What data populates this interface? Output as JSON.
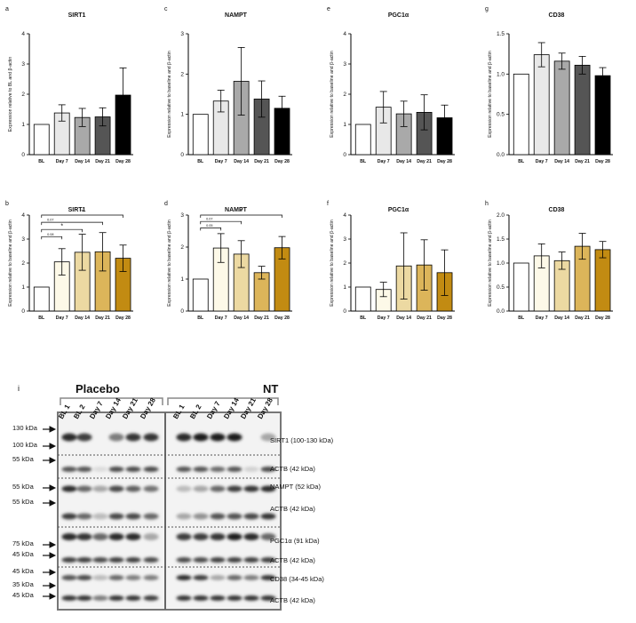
{
  "colors": {
    "greys": [
      "#ffffff",
      "#e8e8e8",
      "#a9a9a9",
      "#555555",
      "#000000"
    ],
    "golds": [
      "#ffffff",
      "#fdf9e8",
      "#ecd9a2",
      "#dcb55a",
      "#c28b12"
    ],
    "axis": "#000000"
  },
  "chart_data": [
    {
      "panel": "a",
      "type": "bar",
      "title": "SIRT1",
      "ylabel": "Expression relative to BL and β-actin",
      "categories": [
        "BL",
        "Day 7",
        "Day 14",
        "Day 21",
        "Day 28"
      ],
      "values": [
        1.0,
        1.38,
        1.23,
        1.25,
        1.97
      ],
      "errors": [
        0,
        0.27,
        0.3,
        0.3,
        0.9
      ],
      "ylim": [
        0,
        4
      ],
      "yticks": [
        "0",
        "1",
        "2",
        "3",
        "4"
      ],
      "palette": "greys",
      "sig": []
    },
    {
      "panel": "c",
      "type": "bar",
      "title": "NAMPT",
      "ylabel": "Expression relative to baseline and β-actin",
      "categories": [
        "BL",
        "Day 7",
        "Day 14",
        "Day 21",
        "Day 28"
      ],
      "values": [
        1.0,
        1.33,
        1.82,
        1.38,
        1.15
      ],
      "errors": [
        0,
        0.27,
        0.84,
        0.45,
        0.3
      ],
      "ylim": [
        0,
        3
      ],
      "yticks": [
        "0",
        "1",
        "2",
        "3"
      ],
      "palette": "greys",
      "sig": []
    },
    {
      "panel": "e",
      "type": "bar",
      "title": "PGC1α",
      "ylabel": "Expression relative to baseline and β-actin",
      "categories": [
        "BL",
        "Day 7",
        "Day 14",
        "Day 21",
        "Day 28"
      ],
      "values": [
        1.0,
        1.57,
        1.35,
        1.4,
        1.22
      ],
      "errors": [
        0,
        0.52,
        0.42,
        0.58,
        0.42
      ],
      "ylim": [
        0,
        4
      ],
      "yticks": [
        "0",
        "1",
        "2",
        "3",
        "4"
      ],
      "palette": "greys",
      "sig": []
    },
    {
      "panel": "g",
      "type": "bar",
      "title": "CD38",
      "ylabel": "Expression relative to baseline and β-actin",
      "categories": [
        "BL",
        "Day 7",
        "Day 14",
        "Day 21",
        "Day 28"
      ],
      "values": [
        1.0,
        1.24,
        1.16,
        1.11,
        0.98
      ],
      "errors": [
        0,
        0.15,
        0.1,
        0.11,
        0.1
      ],
      "ylim": [
        0,
        1.5
      ],
      "yticks": [
        "0.0",
        "0.5",
        "1.0",
        "1.5"
      ],
      "palette": "greys",
      "sig": []
    },
    {
      "panel": "b",
      "type": "bar",
      "title": "SIRT1",
      "ylabel": "Expression relative to baseline and β-actin",
      "categories": [
        "BL",
        "Day 7",
        "Day 14",
        "Day 21",
        "Day 28"
      ],
      "values": [
        1.0,
        2.05,
        2.45,
        2.47,
        2.2
      ],
      "errors": [
        0,
        0.55,
        0.75,
        0.8,
        0.55
      ],
      "ylim": [
        0,
        4
      ],
      "yticks": [
        "0",
        "1",
        "2",
        "3",
        "4"
      ],
      "palette": "golds",
      "sig": [
        {
          "from": 0,
          "to": 1,
          "y": 3.1,
          "label": "0.08"
        },
        {
          "from": 0,
          "to": 2,
          "y": 3.4,
          "label": "*"
        },
        {
          "from": 0,
          "to": 3,
          "y": 3.7,
          "label": "0.07"
        },
        {
          "from": 0,
          "to": 4,
          "y": 4.0,
          "label": "*"
        }
      ]
    },
    {
      "panel": "d",
      "type": "bar",
      "title": "NAMPT",
      "ylabel": "Expression relative to baseline and β-actin",
      "categories": [
        "BL",
        "Day 7",
        "Day 14",
        "Day 21",
        "Day 28"
      ],
      "values": [
        1.0,
        1.97,
        1.78,
        1.2,
        1.98
      ],
      "errors": [
        0,
        0.45,
        0.42,
        0.2,
        0.35
      ],
      "ylim": [
        0,
        3
      ],
      "yticks": [
        "0",
        "1",
        "2",
        "3"
      ],
      "palette": "golds",
      "sig": [
        {
          "from": 0,
          "to": 1,
          "y": 2.6,
          "label": "0.05"
        },
        {
          "from": 0,
          "to": 2,
          "y": 2.8,
          "label": "0.07"
        },
        {
          "from": 0,
          "to": 4,
          "y": 3.0,
          "label": "*"
        }
      ]
    },
    {
      "panel": "f",
      "type": "bar",
      "title": "PGC1α",
      "ylabel": "Expression relative to baseline and β-actin",
      "categories": [
        "BL",
        "Day 7",
        "Day 14",
        "Day 21",
        "Day 28"
      ],
      "values": [
        1.0,
        0.9,
        1.88,
        1.92,
        1.6
      ],
      "errors": [
        0,
        0.3,
        1.38,
        1.05,
        0.95
      ],
      "ylim": [
        0,
        4
      ],
      "yticks": [
        "0",
        "1",
        "2",
        "3",
        "4"
      ],
      "palette": "golds",
      "sig": []
    },
    {
      "panel": "h",
      "type": "bar",
      "title": "CD38",
      "ylabel": "Expression relative to baseline and β-actin",
      "categories": [
        "BL",
        "Day 7",
        "Day 14",
        "Day 21",
        "Day 28"
      ],
      "values": [
        1.0,
        1.15,
        1.05,
        1.35,
        1.28
      ],
      "errors": [
        0,
        0.25,
        0.18,
        0.27,
        0.17
      ],
      "ylim": [
        0,
        2
      ],
      "yticks": [
        "0.0",
        "0.5",
        "1.0",
        "1.5",
        "2.0"
      ],
      "palette": "golds",
      "sig": []
    }
  ],
  "blot": {
    "panel_label": "i",
    "group_placebo": "Placebo",
    "group_nt": "NT",
    "lanes_placebo": [
      "BL 1",
      "BL 2",
      "Day 7",
      "Day 14",
      "Day 21",
      "Day 28"
    ],
    "lanes_nt": [
      "BL 1",
      "BL 2",
      "Day 7",
      "Day 14",
      "Day 21",
      "Day 28"
    ],
    "markers": [
      "130 kDa",
      "100 kDa",
      "55 kDa",
      "55 kDa",
      "55 kDa",
      "75 kDa",
      "45 kDa",
      "45 kDa",
      "35 kDa",
      "45 kDa"
    ],
    "bands": [
      "SIRT1 (100-130 kDa)",
      "ACTB (42 kDa)",
      "NAMPT (52 kDa)",
      "ACTB (42 kDa)",
      "PGC1α (91 kDa)",
      "ACTB (42 kDa)",
      "CD38 (34-45 kDa)",
      "ACTB (42 kDa)"
    ]
  }
}
